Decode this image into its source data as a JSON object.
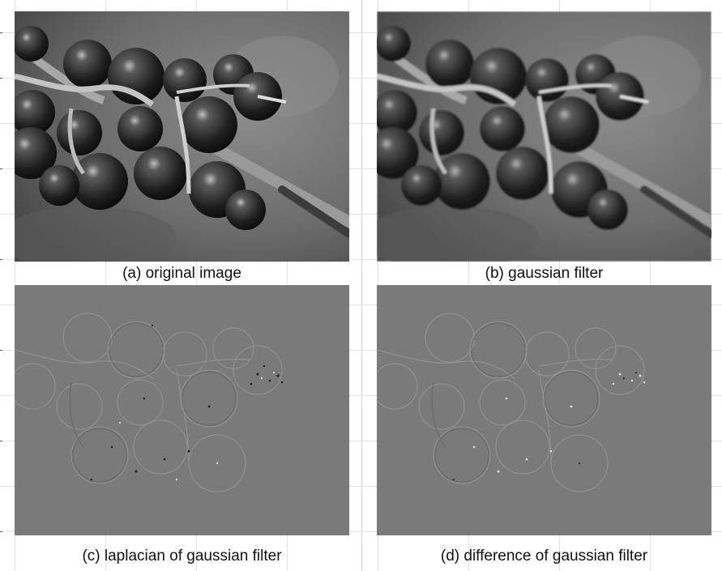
{
  "figure": {
    "panels": [
      {
        "id": "a",
        "caption": "(a) original image",
        "kind": "photo"
      },
      {
        "id": "b",
        "caption": "(b) gaussian filter",
        "kind": "photo-blurred"
      },
      {
        "id": "c",
        "caption": "(c) laplacian of gaussian filter",
        "kind": "edge-map"
      },
      {
        "id": "d",
        "caption": "(d) difference of gaussian filter",
        "kind": "edge-map"
      }
    ]
  },
  "colors": {
    "background": "#ffffff",
    "edge_map_gray": "#7a7a7a",
    "photo_background": "#6e6e6e"
  }
}
